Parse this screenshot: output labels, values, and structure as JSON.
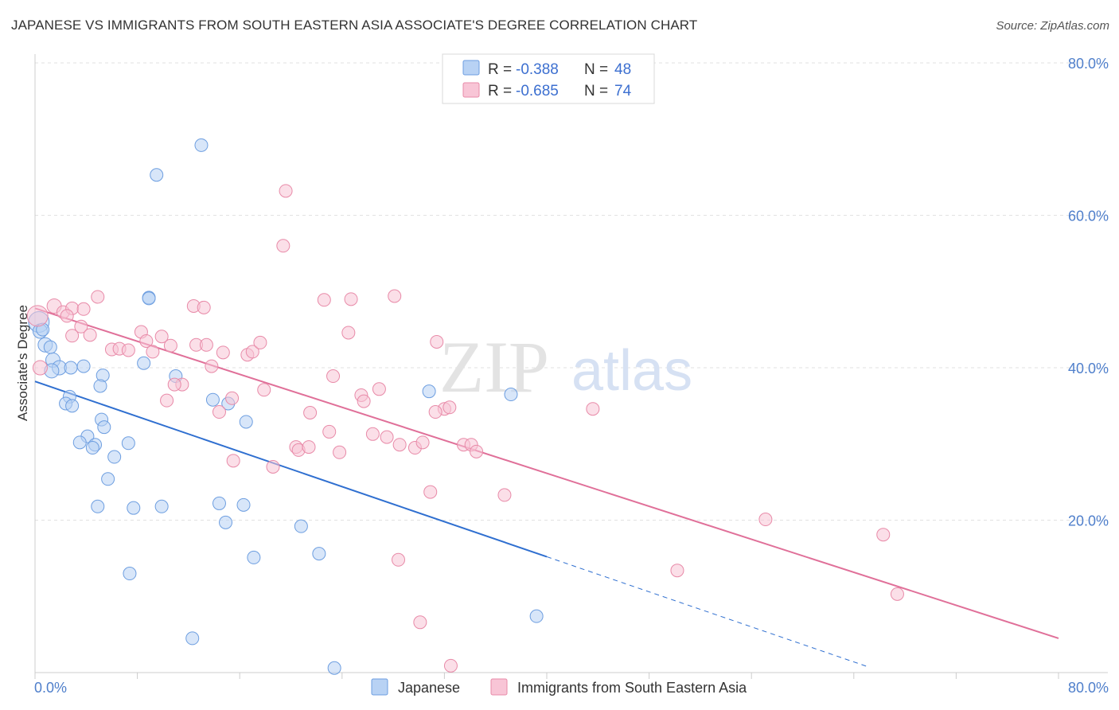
{
  "title": "JAPANESE VS IMMIGRANTS FROM SOUTH EASTERN ASIA ASSOCIATE'S DEGREE CORRELATION CHART",
  "source": "Source: ZipAtlas.com",
  "watermark": {
    "part1": "ZIP",
    "part2": "atlas"
  },
  "colors": {
    "japanese_fill": "#b8d2f4",
    "japanese_stroke": "#6d9ee0",
    "japanese_line": "#2f6fd0",
    "immigrants_fill": "#f8c5d6",
    "immigrants_stroke": "#e88aa8",
    "immigrants_line": "#e07099",
    "grid": "#e2e2e2",
    "tick_text": "#4f7fcb"
  },
  "legend_top": {
    "rows": [
      {
        "r_label": "R = ",
        "r_value": "-0.388",
        "n_label": "N = ",
        "n_value": "48"
      },
      {
        "r_label": "R = ",
        "r_value": "-0.685",
        "n_label": "N = ",
        "n_value": "74"
      }
    ]
  },
  "chart_data": {
    "type": "scatter",
    "title": "JAPANESE VS IMMIGRANTS FROM SOUTH EASTERN ASIA ASSOCIATE'S DEGREE CORRELATION CHART",
    "xlabel": "",
    "ylabel": "Associate's Degree",
    "xlim": [
      0,
      80
    ],
    "ylim": [
      0,
      80
    ],
    "x_tick_labels": [
      "0.0%",
      "80.0%"
    ],
    "y_tick_values": [
      20,
      40,
      60,
      80
    ],
    "y_tick_labels": [
      "20.0%",
      "40.0%",
      "60.0%",
      "80.0%"
    ],
    "grid": true,
    "legend_position": "bottom-center",
    "series": [
      {
        "name": "Japanese",
        "r": -0.388,
        "n": 48,
        "trend": {
          "x1": 0,
          "y1": 38.2,
          "x2": 40,
          "y2": 15.2,
          "dashed_to_x": 65
        },
        "points": [
          [
            0.3,
            46
          ],
          [
            0.4,
            44.8
          ],
          [
            0.8,
            43
          ],
          [
            1.4,
            41
          ],
          [
            1.9,
            40
          ],
          [
            1.3,
            39.6
          ],
          [
            2.8,
            40
          ],
          [
            3.8,
            40.2
          ],
          [
            2.7,
            36.2
          ],
          [
            2.4,
            35.3
          ],
          [
            2.9,
            35
          ],
          [
            5.3,
            39
          ],
          [
            5.1,
            37.6
          ],
          [
            8.5,
            40.6
          ],
          [
            11,
            38.9
          ],
          [
            8.9,
            49.2
          ],
          [
            8.9,
            49.1
          ],
          [
            9.5,
            65.3
          ],
          [
            13,
            69.2
          ],
          [
            13.9,
            35.8
          ],
          [
            15.1,
            35.3
          ],
          [
            16.5,
            32.9
          ],
          [
            5.2,
            33.2
          ],
          [
            5.4,
            32.2
          ],
          [
            4.1,
            31
          ],
          [
            3.5,
            30.2
          ],
          [
            4.7,
            29.9
          ],
          [
            4.5,
            29.5
          ],
          [
            7.3,
            30.1
          ],
          [
            6.2,
            28.3
          ],
          [
            5.7,
            25.4
          ],
          [
            4.9,
            21.8
          ],
          [
            7.7,
            21.6
          ],
          [
            9.9,
            21.8
          ],
          [
            14.4,
            22.2
          ],
          [
            16.3,
            22
          ],
          [
            14.9,
            19.7
          ],
          [
            20.8,
            19.2
          ],
          [
            7.4,
            13
          ],
          [
            17.1,
            15.1
          ],
          [
            22.2,
            15.6
          ],
          [
            30.8,
            36.9
          ],
          [
            37.2,
            36.5
          ],
          [
            12.3,
            4.5
          ],
          [
            23.4,
            0.6
          ],
          [
            39.2,
            7.4
          ],
          [
            0.6,
            45
          ],
          [
            1.2,
            42.7
          ]
        ]
      },
      {
        "name": "Immigrants from South Eastern Asia",
        "r": -0.685,
        "n": 74,
        "trend": {
          "x1": 0,
          "y1": 47.8,
          "x2": 80,
          "y2": 4.5
        },
        "points": [
          [
            0.2,
            46.8
          ],
          [
            0.4,
            40
          ],
          [
            1.5,
            48.1
          ],
          [
            2.2,
            47.3
          ],
          [
            2.9,
            47.8
          ],
          [
            2.5,
            46.8
          ],
          [
            3.8,
            47.7
          ],
          [
            4.9,
            49.3
          ],
          [
            3.6,
            45.4
          ],
          [
            2.9,
            44.2
          ],
          [
            4.3,
            44.3
          ],
          [
            6,
            42.4
          ],
          [
            6.6,
            42.5
          ],
          [
            7.3,
            42.3
          ],
          [
            8.3,
            44.7
          ],
          [
            8.7,
            43.5
          ],
          [
            9.2,
            42.1
          ],
          [
            9.9,
            44.1
          ],
          [
            10.6,
            42.9
          ],
          [
            11.5,
            37.8
          ],
          [
            10.3,
            35.7
          ],
          [
            12.4,
            48.1
          ],
          [
            13.2,
            47.9
          ],
          [
            12.6,
            43
          ],
          [
            13.8,
            40.2
          ],
          [
            14.7,
            42
          ],
          [
            15.4,
            36
          ],
          [
            14.4,
            34.2
          ],
          [
            15.5,
            27.8
          ],
          [
            16.6,
            41.7
          ],
          [
            17,
            42.1
          ],
          [
            17.6,
            43.3
          ],
          [
            17.9,
            37.1
          ],
          [
            18.6,
            27
          ],
          [
            19.4,
            56
          ],
          [
            19.6,
            63.2
          ],
          [
            20.4,
            29.6
          ],
          [
            20.6,
            29.2
          ],
          [
            21.4,
            29.6
          ],
          [
            21.5,
            34.1
          ],
          [
            22.6,
            48.9
          ],
          [
            23,
            31.6
          ],
          [
            23.3,
            38.9
          ],
          [
            23.8,
            28.9
          ],
          [
            24.5,
            44.6
          ],
          [
            24.7,
            49
          ],
          [
            25.5,
            36.4
          ],
          [
            25.7,
            35.6
          ],
          [
            26.4,
            31.3
          ],
          [
            26.9,
            37.2
          ],
          [
            27.5,
            30.9
          ],
          [
            28.1,
            49.4
          ],
          [
            28.5,
            29.9
          ],
          [
            29.7,
            29.5
          ],
          [
            30.3,
            30.2
          ],
          [
            30.9,
            23.7
          ],
          [
            31.4,
            43.4
          ],
          [
            32,
            34.6
          ],
          [
            32.4,
            34.8
          ],
          [
            33.5,
            29.9
          ],
          [
            34.1,
            29.9
          ],
          [
            34.5,
            29
          ],
          [
            30.1,
            6.6
          ],
          [
            31.3,
            34.2
          ],
          [
            36.7,
            23.3
          ],
          [
            28.4,
            14.8
          ],
          [
            32.5,
            0.9
          ],
          [
            43.6,
            34.6
          ],
          [
            50.2,
            13.4
          ],
          [
            57.1,
            20.1
          ],
          [
            66.3,
            18.1
          ],
          [
            67.4,
            10.3
          ],
          [
            13.4,
            43
          ],
          [
            10.9,
            37.8
          ]
        ]
      }
    ]
  }
}
